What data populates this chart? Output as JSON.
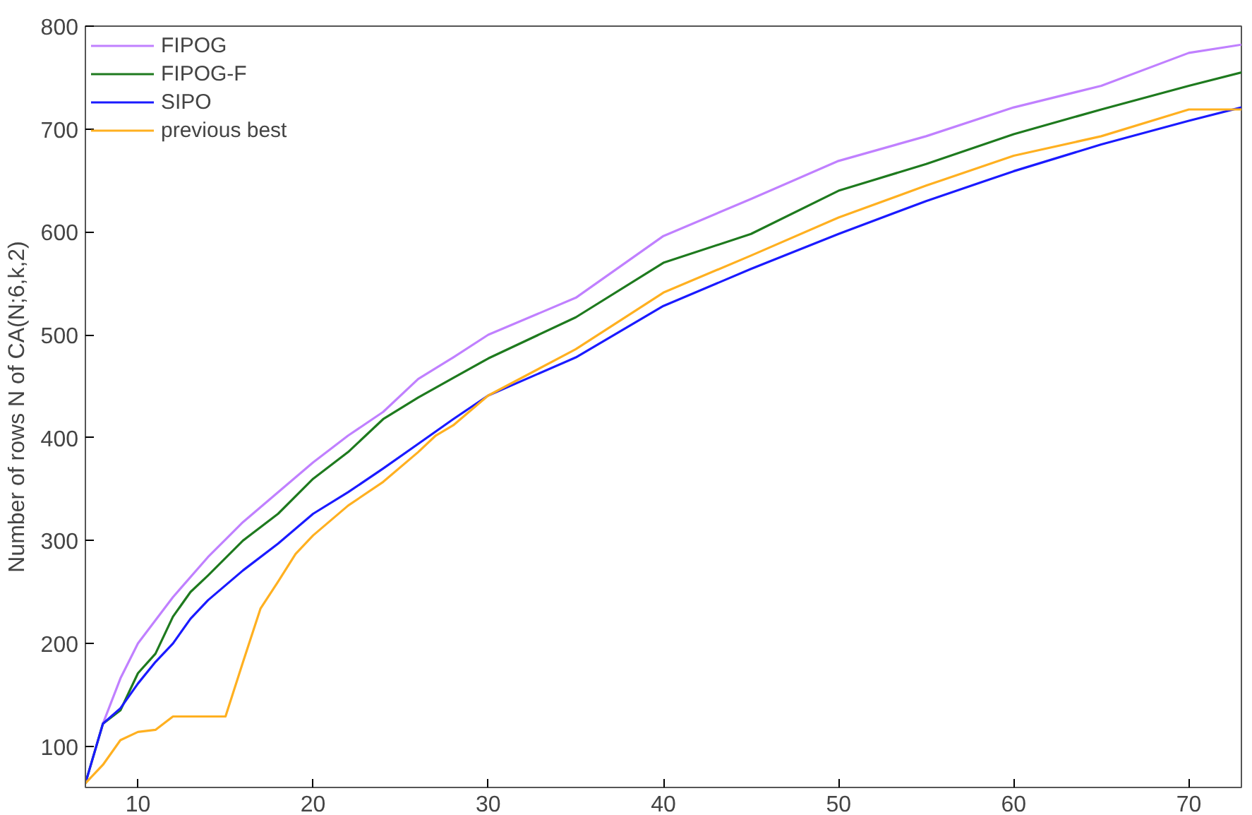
{
  "chart_data": {
    "type": "line",
    "ylabel": "Number of rows N of CA(N;6,k,2)",
    "xlim": [
      7,
      73
    ],
    "ylim": [
      60,
      800
    ],
    "xticks": [
      10,
      20,
      30,
      40,
      50,
      60,
      70
    ],
    "yticks": [
      100,
      200,
      300,
      400,
      500,
      600,
      700,
      800
    ],
    "grid": false,
    "legend": "top left",
    "marker": "none",
    "line_style": "solid",
    "series": [
      {
        "name": "FIPOG",
        "color": "#c080ff",
        "x": [
          8,
          9,
          10,
          12,
          14,
          16,
          18,
          20,
          22,
          24,
          26,
          28,
          30,
          35,
          40,
          45,
          50,
          55,
          60,
          65,
          70,
          73
        ],
        "values": [
          122,
          166,
          200,
          245,
          284,
          318,
          347,
          376,
          402,
          425,
          457,
          478,
          500,
          536,
          596,
          632,
          669,
          693,
          721,
          742,
          774,
          782
        ]
      },
      {
        "name": "FIPOG-F",
        "color": "#1e7a1e",
        "x": [
          7,
          8,
          9,
          10,
          11,
          12,
          13,
          14,
          16,
          18,
          20,
          22,
          24,
          26,
          28,
          30,
          35,
          40,
          45,
          50,
          55,
          60,
          65,
          70,
          73
        ],
        "values": [
          64,
          122,
          135,
          171,
          190,
          226,
          250,
          266,
          300,
          326,
          360,
          386,
          418,
          439,
          458,
          477,
          517,
          570,
          598,
          640,
          666,
          695,
          719,
          742,
          755
        ]
      },
      {
        "name": "SIPO",
        "color": "#1a1aff",
        "x": [
          7,
          8,
          9,
          10,
          11,
          12,
          13,
          14,
          16,
          18,
          20,
          22,
          24,
          26,
          28,
          30,
          35,
          40,
          45,
          50,
          55,
          60,
          65,
          70,
          73
        ],
        "values": [
          64,
          122,
          137,
          161,
          182,
          200,
          224,
          242,
          271,
          297,
          326,
          347,
          370,
          394,
          418,
          441,
          478,
          528,
          564,
          598,
          630,
          659,
          685,
          708,
          721
        ]
      },
      {
        "name": "previous best",
        "color": "#ffb020",
        "x": [
          7,
          8,
          9,
          10,
          11,
          12,
          13,
          14,
          15,
          16,
          17,
          18,
          19,
          20,
          22,
          24,
          26,
          27,
          28,
          30,
          35,
          40,
          45,
          50,
          55,
          60,
          65,
          70,
          73
        ],
        "values": [
          64,
          82,
          106,
          114,
          116,
          129,
          129,
          129,
          129,
          182,
          234,
          260,
          287,
          305,
          334,
          357,
          386,
          402,
          412,
          441,
          486,
          541,
          577,
          614,
          645,
          674,
          693,
          719,
          719
        ]
      }
    ]
  }
}
